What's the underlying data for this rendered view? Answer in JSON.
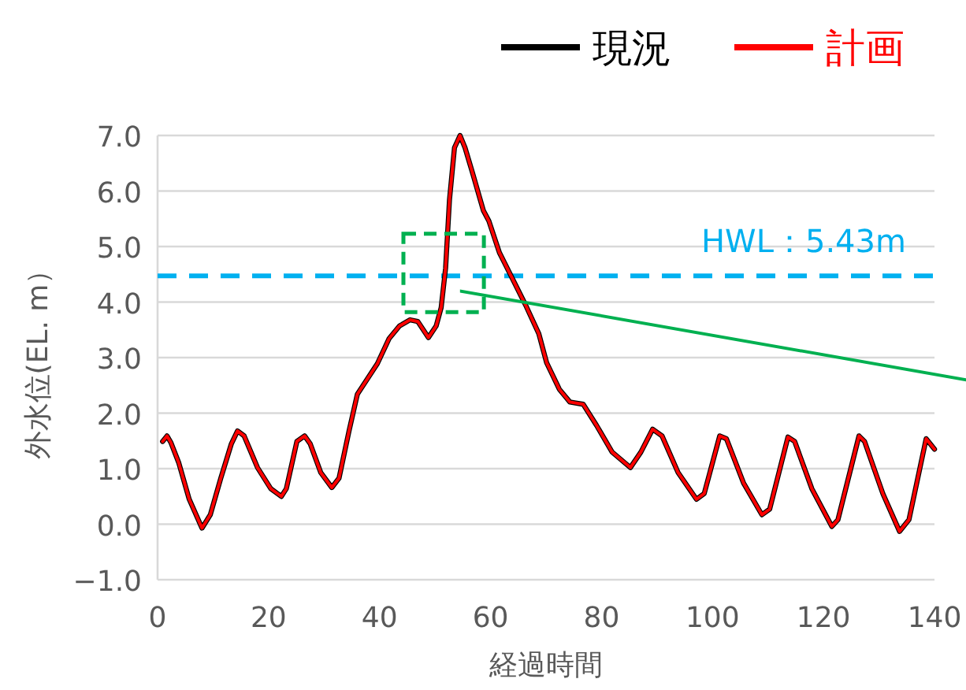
{
  "chart_data": {
    "type": "line",
    "xlabel": "経過時間",
    "ylabel": "外水位(EL. m）",
    "legend": "top",
    "grid": "y",
    "xlim": [
      0,
      140
    ],
    "xticks": [
      0,
      20,
      40,
      60,
      80,
      100,
      120,
      140
    ],
    "ylim": [
      -1,
      7
    ],
    "yticks": [
      {
        "value": -1,
        "label": "−1.0"
      },
      {
        "value": 0,
        "label": "0.0"
      },
      {
        "value": 1,
        "label": "1.0"
      },
      {
        "value": 2,
        "label": "2.0"
      },
      {
        "value": 3,
        "label": "3.0"
      },
      {
        "value": 4,
        "label": "4.0"
      },
      {
        "value": 5,
        "label": "5.0"
      },
      {
        "value": 6,
        "label": "6.0"
      },
      {
        "value": 7,
        "label": "7.0"
      }
    ],
    "x": [
      0.9,
      1.7,
      2.4,
      3.8,
      5.7,
      8.0,
      9.5,
      11.4,
      13.3,
      14.4,
      15.6,
      18,
      20.4,
      22.3,
      23.2,
      25.1,
      26.5,
      27.5,
      29.4,
      31.4,
      32.7,
      34.5,
      36,
      37.9,
      39.6,
      41.7,
      43.6,
      45.5,
      46.9,
      48.8,
      50.2,
      51.1,
      51.9,
      52.6,
      53.5,
      54.5,
      55.4,
      56.8,
      58.7,
      59.7,
      61.6,
      62.5,
      66.3,
      68.7,
      70.1,
      72.4,
      74.3,
      76.7,
      79.1,
      81.9,
      85.2,
      87.1,
      89.2,
      90.9,
      93.8,
      97.1,
      98.5,
      101.3,
      102.5,
      105.6,
      108.9,
      110.3,
      113.6,
      114.8,
      117.9,
      121.5,
      122.6,
      126.4,
      127.4,
      130.7,
      133.7,
      135.4,
      138.5,
      140
    ],
    "series": [
      {
        "name": "現況",
        "color": "#000000",
        "values": [
          1.49,
          1.59,
          1.47,
          1.11,
          0.45,
          -0.07,
          0.17,
          0.83,
          1.45,
          1.68,
          1.59,
          1.02,
          0.64,
          0.5,
          0.64,
          1.49,
          1.59,
          1.45,
          0.93,
          0.66,
          0.83,
          1.68,
          2.34,
          2.63,
          2.89,
          3.34,
          3.57,
          3.68,
          3.65,
          3.36,
          3.57,
          3.9,
          4.61,
          5.84,
          6.78,
          7.0,
          6.78,
          6.31,
          5.65,
          5.46,
          4.89,
          4.71,
          3.95,
          3.43,
          2.91,
          2.43,
          2.2,
          2.16,
          1.78,
          1.3,
          1.02,
          1.3,
          1.71,
          1.59,
          0.93,
          0.45,
          0.55,
          1.59,
          1.54,
          0.74,
          0.17,
          0.27,
          1.57,
          1.49,
          0.64,
          -0.04,
          0.08,
          1.59,
          1.49,
          0.55,
          -0.13,
          0.08,
          1.54,
          1.35
        ]
      },
      {
        "name": "計画",
        "color": "#ff0000",
        "values": [
          1.49,
          1.59,
          1.47,
          1.11,
          0.45,
          -0.07,
          0.17,
          0.83,
          1.45,
          1.68,
          1.59,
          1.02,
          0.64,
          0.5,
          0.64,
          1.49,
          1.59,
          1.45,
          0.93,
          0.66,
          0.83,
          1.68,
          2.34,
          2.63,
          2.89,
          3.34,
          3.57,
          3.68,
          3.65,
          3.36,
          3.57,
          3.9,
          4.61,
          5.84,
          6.78,
          7.0,
          6.78,
          6.31,
          5.65,
          5.46,
          4.89,
          4.71,
          3.95,
          3.43,
          2.91,
          2.43,
          2.2,
          2.16,
          1.78,
          1.3,
          1.02,
          1.3,
          1.71,
          1.59,
          0.93,
          0.45,
          0.55,
          1.59,
          1.54,
          0.74,
          0.17,
          0.27,
          1.57,
          1.49,
          0.64,
          -0.04,
          0.08,
          1.59,
          1.49,
          0.55,
          -0.13,
          0.08,
          1.54,
          1.35
        ]
      }
    ],
    "ref_lines": [
      {
        "axis": "y",
        "value": 4.47,
        "label": "HWL：5.43m",
        "color": "#00b0f0",
        "line_style": "dashed"
      }
    ]
  }
}
